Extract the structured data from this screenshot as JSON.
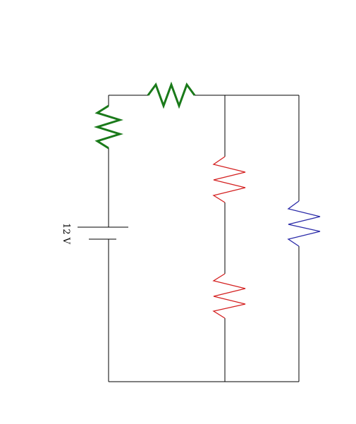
{
  "battery": {
    "voltage_label": "12 V"
  },
  "resistors": [
    {
      "id": "top",
      "color": "#1a7a1a"
    },
    {
      "id": "left",
      "color": "#1a7a1a"
    },
    {
      "id": "middle-upper",
      "color": "#d42020"
    },
    {
      "id": "middle-lower",
      "color": "#d42020"
    },
    {
      "id": "right",
      "color": "#2a2aa8"
    }
  ],
  "colors": {
    "wire": "#000000",
    "green_resistor": "#1a7a1a",
    "red_resistor": "#d42020",
    "blue_resistor": "#2a2aa8"
  }
}
